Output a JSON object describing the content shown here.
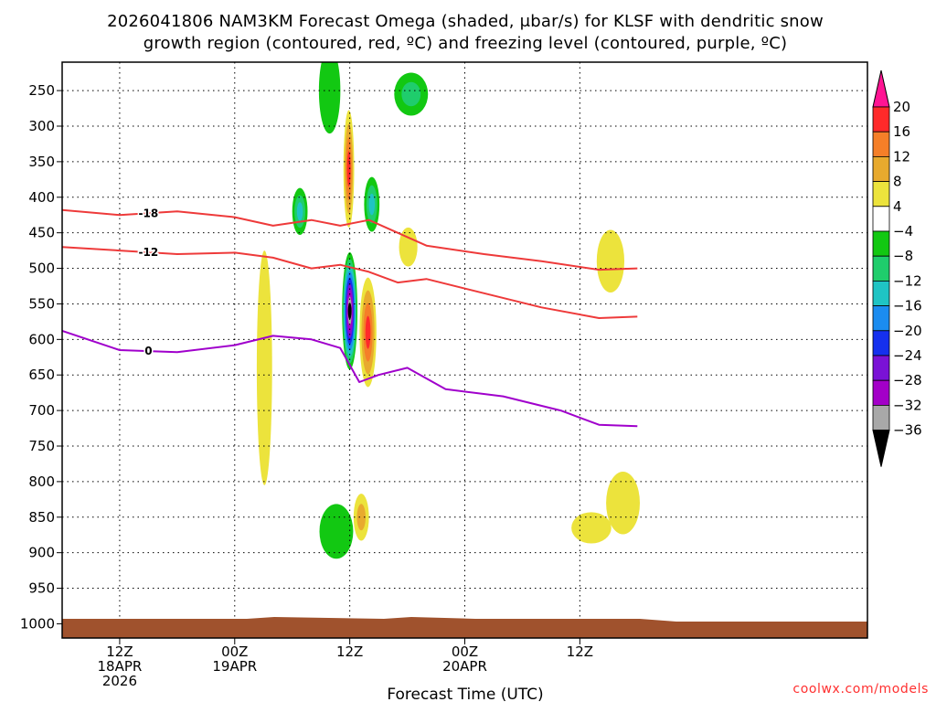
{
  "chart_data": {
    "type": "heatmap",
    "title_line1": "2026041806 NAM3KM Forecast Omega (shaded, μbar/s) for KLSF with dendritic snow",
    "title_line2": "growth region (contoured, red, ºC) and freezing level (contoured, purple, ºC)",
    "xlabel": "Forecast Time (UTC)",
    "credit": "coolwx.com/models",
    "x_range_hours": [
      0,
      84
    ],
    "y_range_hpa": [
      210,
      1020
    ],
    "pressure_ticks": [
      250,
      300,
      350,
      400,
      450,
      500,
      550,
      600,
      650,
      700,
      750,
      800,
      850,
      900,
      950,
      1000
    ],
    "time_ticks": [
      {
        "hour": 6,
        "line1": "12Z",
        "line2": "18APR",
        "line3": "2026"
      },
      {
        "hour": 18,
        "line1": "00Z",
        "line2": "19APR",
        "line3": ""
      },
      {
        "hour": 30,
        "line1": "12Z",
        "line2": "",
        "line3": ""
      },
      {
        "hour": 42,
        "line1": "00Z",
        "line2": "20APR",
        "line3": ""
      },
      {
        "hour": 54,
        "line1": "12Z",
        "line2": "",
        "line3": ""
      }
    ],
    "colorbar": {
      "labels": [
        "20",
        "16",
        "12",
        "8",
        "4",
        "−4",
        "−8",
        "−12",
        "−16",
        "−20",
        "−24",
        "−28",
        "−32",
        "−36"
      ],
      "colors": [
        "#ff1493",
        "#ff2a2a",
        "#f57f28",
        "#e8aa2e",
        "#ece33c",
        "#ffffff",
        "#12c812",
        "#1fcd6c",
        "#1fc4c4",
        "#1b8cf0",
        "#1530ee",
        "#7a12d6",
        "#a300c8",
        "#a8a8a8",
        "#000000"
      ]
    },
    "omega_features": [
      {
        "hour": 29.9,
        "p": 360,
        "value": 18,
        "w": 0.35,
        "h": 150
      },
      {
        "hour": 30.0,
        "p": 560,
        "value": -36,
        "w": 0.5,
        "h": 150
      },
      {
        "hour": 31.9,
        "p": 590,
        "value": 18,
        "w": 0.55,
        "h": 140
      },
      {
        "hour": 31.2,
        "p": 850,
        "value": 10,
        "w": 0.5,
        "h": 60
      },
      {
        "hour": 32.3,
        "p": 410,
        "value": -14,
        "w": 0.5,
        "h": 70
      },
      {
        "hour": 24.8,
        "p": 420,
        "value": -12,
        "w": 0.5,
        "h": 60
      },
      {
        "hour": 36.4,
        "p": 255,
        "value": -10,
        "w": 1.1,
        "h": 55
      },
      {
        "hour": 21.1,
        "p": 640,
        "value": 6,
        "w": 0.5,
        "h": 300
      },
      {
        "hour": 28.6,
        "p": 870,
        "value": -6,
        "w": 1.1,
        "h": 70
      },
      {
        "hour": 27.9,
        "p": 250,
        "value": -6,
        "w": 0.7,
        "h": 110
      },
      {
        "hour": 36.1,
        "p": 470,
        "value": 6,
        "w": 0.6,
        "h": 50
      },
      {
        "hour": 55.2,
        "p": 865,
        "value": 6,
        "w": 1.3,
        "h": 40
      },
      {
        "hour": 57.2,
        "p": 490,
        "value": 6,
        "w": 0.9,
        "h": 80
      },
      {
        "hour": 58.5,
        "p": 830,
        "value": 6,
        "w": 1.1,
        "h": 80
      }
    ],
    "contours": [
      {
        "label": "-18",
        "color": "#ee3a3a",
        "kind": "dendritic",
        "hours": [
          0,
          6,
          12,
          18,
          22,
          26,
          29,
          32,
          35,
          38,
          44,
          50,
          56,
          60
        ],
        "p": [
          418,
          425,
          420,
          428,
          440,
          432,
          440,
          432,
          450,
          468,
          480,
          490,
          502,
          500
        ]
      },
      {
        "label": "-12",
        "color": "#ee3a3a",
        "kind": "dendritic",
        "hours": [
          0,
          6,
          12,
          18,
          22,
          26,
          29,
          32,
          35,
          38,
          44,
          50,
          56,
          60
        ],
        "p": [
          470,
          475,
          480,
          478,
          485,
          500,
          495,
          505,
          520,
          515,
          535,
          555,
          570,
          568
        ]
      },
      {
        "label": "0",
        "color": "#a000cc",
        "kind": "freezing",
        "hours": [
          0,
          6,
          12,
          18,
          22,
          26,
          29,
          31,
          33,
          36,
          40,
          46,
          52,
          56,
          60
        ],
        "p": [
          588,
          615,
          618,
          608,
          595,
          600,
          612,
          660,
          650,
          640,
          670,
          680,
          700,
          720,
          722
        ]
      }
    ]
  }
}
